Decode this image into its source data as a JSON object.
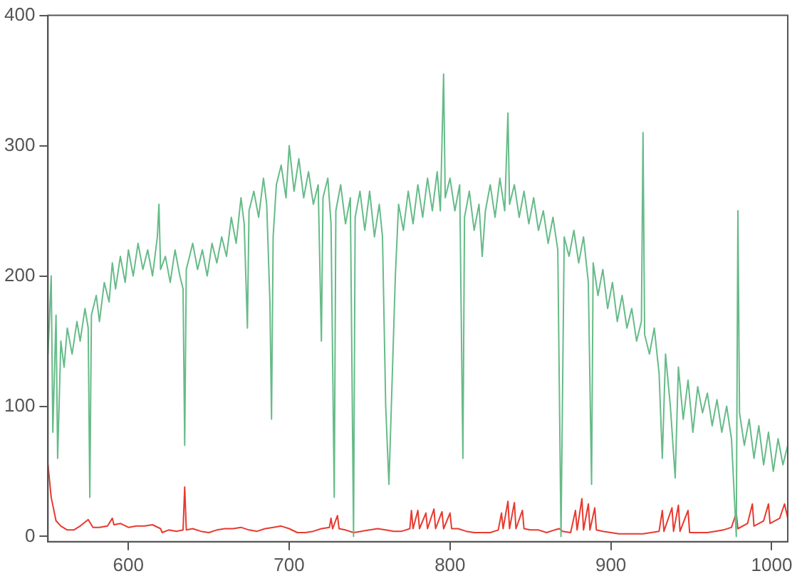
{
  "chart_data": {
    "type": "line",
    "xlim": [
      550,
      1010
    ],
    "ylim": [
      -4,
      400
    ],
    "xticks": [
      600,
      700,
      800,
      900,
      1000
    ],
    "yticks": [
      0,
      100,
      200,
      300,
      400
    ],
    "series": [
      {
        "color": "#66bb88",
        "x": [
          550,
          552,
          553,
          555,
          556,
          558,
          560,
          562,
          565,
          568,
          570,
          573,
          575,
          576,
          577,
          580,
          582,
          585,
          588,
          590,
          592,
          595,
          598,
          600,
          603,
          606,
          609,
          612,
          615,
          618,
          619,
          620,
          623,
          626,
          629,
          632,
          634,
          635,
          636,
          640,
          643,
          646,
          649,
          652,
          655,
          658,
          661,
          664,
          667,
          670,
          672,
          674,
          675,
          678,
          681,
          684,
          686,
          688,
          689,
          690,
          692,
          695,
          698,
          700,
          703,
          706,
          709,
          712,
          715,
          718,
          720,
          721,
          724,
          726,
          728,
          729,
          732,
          735,
          738,
          740,
          741,
          744,
          747,
          750,
          753,
          756,
          758,
          760,
          762,
          764,
          766,
          768,
          771,
          774,
          777,
          780,
          783,
          786,
          789,
          792,
          794,
          796,
          797,
          800,
          803,
          806,
          808,
          809,
          812,
          815,
          818,
          820,
          822,
          825,
          828,
          831,
          834,
          836,
          837,
          840,
          843,
          846,
          849,
          852,
          855,
          858,
          861,
          864,
          867,
          869,
          871,
          874,
          877,
          880,
          883,
          886,
          888,
          889,
          892,
          895,
          898,
          901,
          904,
          907,
          910,
          913,
          916,
          919,
          920,
          921,
          924,
          927,
          930,
          932,
          934,
          937,
          940,
          942,
          945,
          948,
          951,
          954,
          957,
          960,
          963,
          966,
          969,
          972,
          975,
          978,
          979,
          980,
          983,
          986,
          989,
          992,
          995,
          998,
          1001,
          1004,
          1007,
          1010
        ],
        "values": [
          140,
          200,
          80,
          170,
          60,
          150,
          130,
          160,
          140,
          165,
          150,
          175,
          160,
          30,
          170,
          185,
          165,
          195,
          180,
          210,
          190,
          215,
          195,
          220,
          200,
          225,
          205,
          220,
          200,
          230,
          255,
          205,
          215,
          195,
          220,
          200,
          190,
          70,
          205,
          225,
          205,
          220,
          200,
          225,
          210,
          230,
          215,
          245,
          225,
          260,
          240,
          160,
          250,
          265,
          245,
          275,
          255,
          180,
          90,
          230,
          270,
          285,
          260,
          300,
          265,
          290,
          260,
          280,
          255,
          270,
          150,
          260,
          275,
          240,
          30,
          250,
          270,
          240,
          260,
          0,
          245,
          265,
          235,
          265,
          230,
          255,
          230,
          100,
          40,
          120,
          200,
          255,
          235,
          265,
          240,
          270,
          245,
          275,
          250,
          280,
          250,
          355,
          260,
          275,
          250,
          270,
          60,
          245,
          265,
          235,
          255,
          215,
          250,
          270,
          245,
          275,
          250,
          325,
          255,
          270,
          245,
          265,
          240,
          260,
          235,
          250,
          225,
          245,
          220,
          0,
          230,
          215,
          235,
          210,
          230,
          195,
          40,
          210,
          185,
          205,
          175,
          195,
          165,
          185,
          160,
          175,
          150,
          165,
          310,
          155,
          140,
          160,
          125,
          60,
          140,
          100,
          45,
          130,
          90,
          120,
          80,
          115,
          95,
          110,
          85,
          105,
          80,
          100,
          75,
          0,
          250,
          95,
          70,
          90,
          60,
          85,
          55,
          80,
          50,
          75,
          55,
          70
        ]
      },
      {
        "color": "#e8392e",
        "x": [
          550,
          552,
          555,
          558,
          562,
          566,
          570,
          575,
          578,
          582,
          587,
          590,
          591,
          595,
          600,
          605,
          610,
          615,
          620,
          621,
          625,
          630,
          634,
          635,
          636,
          640,
          645,
          650,
          655,
          660,
          665,
          670,
          675,
          680,
          685,
          690,
          695,
          700,
          705,
          710,
          715,
          720,
          725,
          726,
          727,
          730,
          731,
          735,
          740,
          745,
          750,
          755,
          760,
          765,
          770,
          775,
          776,
          777,
          780,
          781,
          785,
          786,
          790,
          791,
          795,
          796,
          800,
          801,
          805,
          810,
          815,
          820,
          825,
          830,
          832,
          833,
          836,
          837,
          840,
          841,
          845,
          846,
          850,
          855,
          860,
          865,
          868,
          870,
          875,
          878,
          879,
          882,
          883,
          886,
          887,
          890,
          891,
          895,
          900,
          905,
          910,
          915,
          920,
          925,
          930,
          932,
          933,
          938,
          939,
          942,
          943,
          948,
          949,
          955,
          960,
          965,
          970,
          975,
          978,
          979,
          985,
          988,
          989,
          995,
          998,
          999,
          1005,
          1008,
          1010
        ],
        "values": [
          55,
          30,
          12,
          8,
          5,
          5,
          8,
          13,
          7,
          7,
          8,
          14,
          9,
          10,
          7,
          8,
          8,
          9,
          6,
          3,
          5,
          4,
          5,
          38,
          5,
          6,
          4,
          3,
          5,
          6,
          6,
          7,
          5,
          4,
          6,
          7,
          8,
          6,
          3,
          3,
          4,
          6,
          7,
          14,
          6,
          16,
          6,
          5,
          3,
          4,
          5,
          6,
          5,
          4,
          4,
          6,
          20,
          6,
          20,
          6,
          18,
          6,
          21,
          6,
          19,
          6,
          18,
          6,
          6,
          4,
          3,
          3,
          3,
          5,
          18,
          6,
          27,
          6,
          26,
          6,
          20,
          6,
          5,
          5,
          3,
          5,
          6,
          4,
          3,
          20,
          5,
          29,
          5,
          25,
          5,
          22,
          5,
          4,
          3,
          2,
          2,
          2,
          2,
          3,
          4,
          20,
          4,
          22,
          4,
          24,
          4,
          20,
          3,
          3,
          3,
          4,
          5,
          7,
          18,
          6,
          10,
          25,
          8,
          12,
          25,
          10,
          14,
          25,
          14
        ]
      }
    ]
  }
}
